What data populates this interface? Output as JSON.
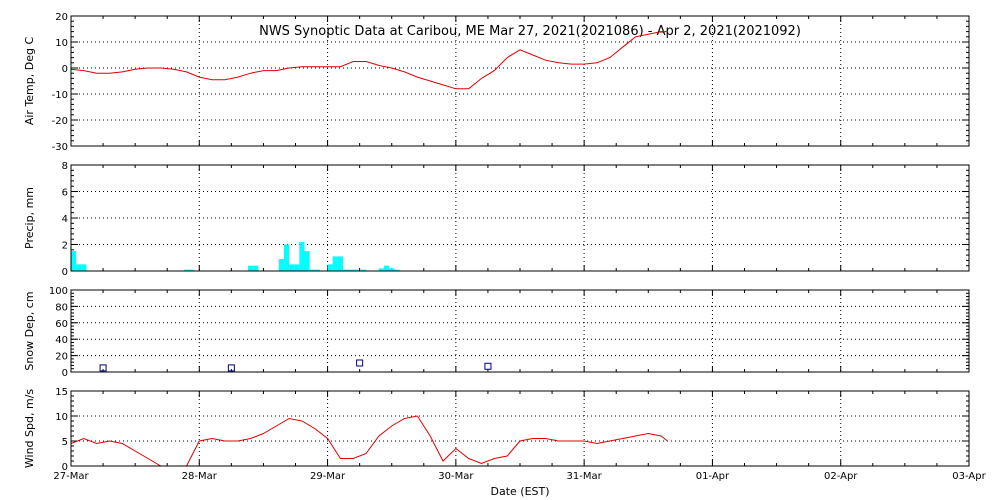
{
  "title": "NWS Synoptic Data at Caribou, ME   Mar 27, 2021(2021086) - Apr  2, 2021(2021092)",
  "xlabel": "Date (EST)",
  "x_ticks": [
    "27-Mar",
    "28-Mar",
    "29-Mar",
    "30-Mar",
    "31-Mar",
    "01-Apr",
    "02-Apr",
    "03-Apr"
  ],
  "colors": {
    "line": "#e00000",
    "precip": "#00ffff",
    "snow": "#000080",
    "axes": "#000000"
  },
  "chart_data": [
    {
      "type": "line",
      "ylabel": "Air Temp, Deg C",
      "ylim": [
        -30,
        20
      ],
      "yticks": [
        -30,
        -20,
        -10,
        0,
        10,
        20
      ],
      "x_unit": "days since 27-Mar 00:00 EST",
      "x": [
        0,
        0.1,
        0.2,
        0.3,
        0.4,
        0.5,
        0.6,
        0.7,
        0.8,
        0.9,
        1.0,
        1.1,
        1.2,
        1.3,
        1.4,
        1.5,
        1.6,
        1.7,
        1.8,
        1.9,
        2.0,
        2.1,
        2.2,
        2.3,
        2.4,
        2.5,
        2.6,
        2.7,
        2.8,
        2.9,
        3.0,
        3.1,
        3.2,
        3.3,
        3.4,
        3.5,
        3.6,
        3.7,
        3.8,
        3.9,
        4.0,
        4.1,
        4.2,
        4.3,
        4.4,
        4.5,
        4.6,
        4.65
      ],
      "y": [
        -0.5,
        -1,
        -2,
        -2,
        -1.5,
        -0.5,
        0,
        0,
        -0.5,
        -1.5,
        -3.5,
        -4.5,
        -4.5,
        -3.5,
        -2,
        -1,
        -1,
        0,
        0.5,
        0.5,
        0.5,
        0.5,
        2.5,
        2.5,
        1,
        0,
        -1.5,
        -3.5,
        -5,
        -6.5,
        -8,
        -8,
        -4,
        -1,
        4,
        7,
        5,
        3,
        2,
        1.5,
        1.5,
        2,
        4,
        8,
        12,
        13,
        14,
        14
      ]
    },
    {
      "type": "bar",
      "ylabel": "Precip, mm",
      "ylim": [
        0,
        8
      ],
      "yticks": [
        0,
        2,
        4,
        6,
        8
      ],
      "x_unit": "days since 27-Mar 00:00 EST",
      "x": [
        0.0,
        0.04,
        0.08,
        0.88,
        0.92,
        1.38,
        1.42,
        1.62,
        1.66,
        1.7,
        1.74,
        1.78,
        1.82,
        1.86,
        1.9,
        2.0,
        2.04,
        2.08,
        2.12,
        2.16,
        2.2,
        2.26,
        2.4,
        2.44,
        2.48,
        2.52
      ],
      "values": [
        1.5,
        0.5,
        0.5,
        0.1,
        0.1,
        0.4,
        0.4,
        0.9,
        2.0,
        0.5,
        0.5,
        2.2,
        1.5,
        0.1,
        0.1,
        0.5,
        1.1,
        1.1,
        0.1,
        0.1,
        0.1,
        0.1,
        0.2,
        0.4,
        0.2,
        0.1
      ]
    },
    {
      "type": "scatter",
      "ylabel": "Snow Dep, cm",
      "ylim": [
        0,
        100
      ],
      "yticks": [
        0,
        20,
        40,
        60,
        80,
        100
      ],
      "x_unit": "days since 27-Mar 00:00 EST",
      "x": [
        0.25,
        1.25,
        2.25,
        3.25
      ],
      "y": [
        5,
        5,
        11,
        7
      ]
    },
    {
      "type": "line",
      "ylabel": "Wind Spd, m/s",
      "ylim": [
        0,
        15
      ],
      "yticks": [
        0,
        5,
        10,
        15
      ],
      "x_unit": "days since 27-Mar 00:00 EST",
      "x": [
        0,
        0.1,
        0.2,
        0.3,
        0.4,
        0.5,
        0.6,
        0.7,
        0.8,
        0.9,
        1.0,
        1.1,
        1.2,
        1.3,
        1.4,
        1.5,
        1.6,
        1.7,
        1.8,
        1.9,
        2.0,
        2.1,
        2.2,
        2.3,
        2.4,
        2.5,
        2.6,
        2.7,
        2.8,
        2.9,
        3.0,
        3.1,
        3.2,
        3.3,
        3.4,
        3.5,
        3.6,
        3.7,
        3.8,
        3.9,
        4.0,
        4.1,
        4.2,
        4.3,
        4.4,
        4.5,
        4.6,
        4.65
      ],
      "y": [
        4.5,
        5.5,
        4.5,
        5,
        4.5,
        3,
        1.5,
        0,
        0,
        0,
        5,
        5.5,
        5,
        5,
        5.5,
        6.5,
        8,
        9.5,
        9,
        7.5,
        5.5,
        1.5,
        1.5,
        2.5,
        6,
        8,
        9.5,
        10,
        6,
        1,
        3.5,
        1.5,
        0.5,
        1.5,
        2,
        5,
        5.5,
        5.5,
        5,
        5,
        5,
        4.5,
        5,
        5.5,
        6,
        6.5,
        6,
        5
      ]
    }
  ]
}
